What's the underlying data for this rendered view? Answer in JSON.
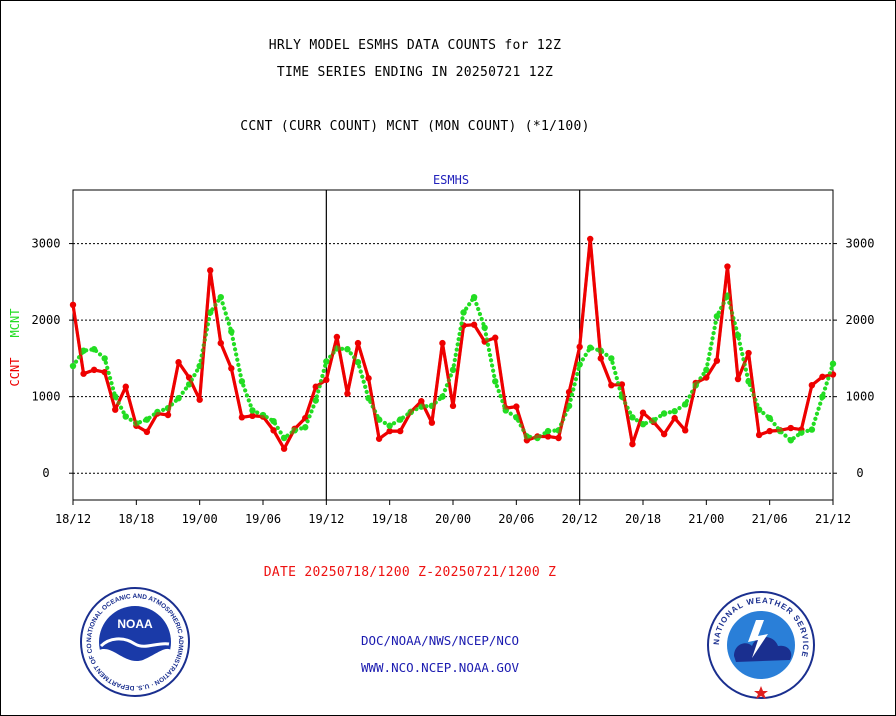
{
  "header": {
    "title_line1": "HRLY MODEL ESMHS DATA COUNTS for 12Z",
    "title_line2": "TIME SERIES ENDING IN 20250721 12Z",
    "subtitle": "CCNT (CURR COUNT) MCNT (MON COUNT) (*1/100)"
  },
  "footer": {
    "date_range": "DATE 20250718/1200 Z-20250721/1200 Z",
    "credit_line1": "DOC/NOAA/NWS/NCEP/NCO",
    "credit_line2": "WWW.NCO.NCEP.NOAA.GOV"
  },
  "logos": {
    "noaa_text": "NOAA",
    "noaa_ring": "NATIONAL OCEANIC AND ATMOSPHERIC ADMINISTRATION · U.S. DEPARTMENT OF COMMERCE",
    "nws_ring": "NATIONAL WEATHER SERVICE"
  },
  "colors": {
    "ccnt": "#ee0000",
    "mcnt": "#22dd22",
    "panel_label": "#2222bb"
  },
  "chart_data": {
    "type": "line",
    "title": "ESMHS",
    "xlabel": "",
    "ylabel_series": [
      "CCNT",
      "MCNT"
    ],
    "ylim": [
      -350,
      3700
    ],
    "yticks": [
      0,
      1000,
      2000,
      3000
    ],
    "grid": true,
    "x_hours_range": [
      0,
      72
    ],
    "x_ticks": [
      {
        "h": 0,
        "label": "18/12"
      },
      {
        "h": 6,
        "label": "18/18"
      },
      {
        "h": 12,
        "label": "19/00"
      },
      {
        "h": 18,
        "label": "19/06"
      },
      {
        "h": 24,
        "label": "19/12"
      },
      {
        "h": 30,
        "label": "19/18"
      },
      {
        "h": 36,
        "label": "20/00"
      },
      {
        "h": 42,
        "label": "20/06"
      },
      {
        "h": 48,
        "label": "20/12"
      },
      {
        "h": 54,
        "label": "20/18"
      },
      {
        "h": 60,
        "label": "21/00"
      },
      {
        "h": 66,
        "label": "21/06"
      },
      {
        "h": 72,
        "label": "21/12"
      }
    ],
    "day_separators": [
      24,
      48
    ],
    "series": [
      {
        "name": "CCNT",
        "style": "solid",
        "values": [
          2200,
          1300,
          1350,
          1320,
          830,
          1130,
          620,
          540,
          780,
          760,
          1450,
          1250,
          960,
          2650,
          1700,
          1370,
          730,
          750,
          740,
          560,
          320,
          580,
          720,
          1130,
          1220,
          1780,
          1040,
          1700,
          1240,
          450,
          550,
          550,
          800,
          940,
          660,
          1700,
          880,
          1930,
          1940,
          1720,
          1770,
          850,
          870,
          430,
          480,
          480,
          460,
          1060,
          1650,
          3060,
          1500,
          1150,
          1160,
          380,
          790,
          670,
          510,
          720,
          560,
          1180,
          1250,
          1470,
          2700,
          1230,
          1570,
          500,
          550,
          560,
          590,
          570,
          1150,
          1260,
          1290
        ]
      },
      {
        "name": "MCNT",
        "style": "dotted",
        "values": [
          1400,
          1600,
          1620,
          1500,
          1000,
          740,
          650,
          700,
          800,
          850,
          980,
          1160,
          1400,
          2100,
          2300,
          1850,
          1200,
          820,
          760,
          680,
          460,
          560,
          600,
          950,
          1460,
          1630,
          1620,
          1450,
          980,
          700,
          620,
          700,
          800,
          870,
          880,
          1000,
          1350,
          2100,
          2300,
          1900,
          1200,
          820,
          730,
          480,
          460,
          550,
          560,
          880,
          1420,
          1640,
          1600,
          1500,
          1000,
          730,
          640,
          690,
          780,
          810,
          900,
          1150,
          1350,
          2050,
          2320,
          1800,
          1200,
          830,
          720,
          550,
          430,
          530,
          570,
          1000,
          1430
        ]
      }
    ]
  }
}
